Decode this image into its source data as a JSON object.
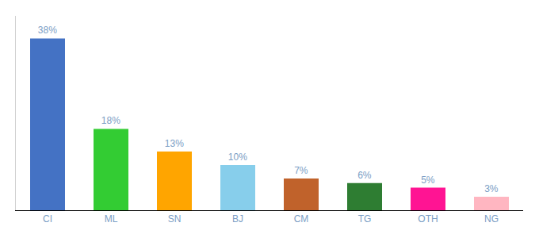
{
  "chart_data": {
    "type": "bar",
    "categories": [
      "CI",
      "ML",
      "SN",
      "BJ",
      "CM",
      "TG",
      "OTH",
      "NG"
    ],
    "values": [
      38,
      18,
      13,
      10,
      7,
      6,
      5,
      3
    ],
    "value_labels": [
      "38%",
      "18%",
      "13%",
      "10%",
      "7%",
      "6%",
      "5%",
      "3%"
    ],
    "colors": [
      "#4472C4",
      "#33CC33",
      "#FFA500",
      "#87CEEB",
      "#C0622B",
      "#2E7D32",
      "#FF1493",
      "#FFB6C1"
    ],
    "ylim": [
      0,
      43
    ],
    "data_labels": true,
    "tick_labels": "x",
    "grid": false
  }
}
